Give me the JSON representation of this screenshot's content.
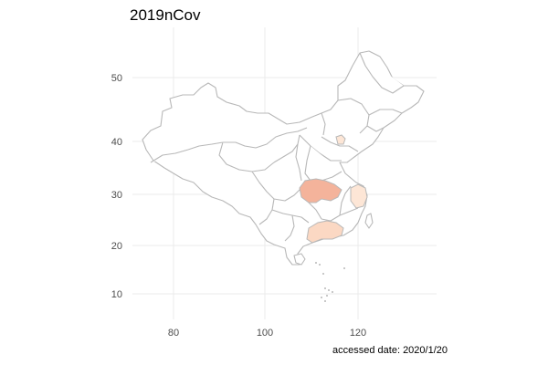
{
  "title": "2019nCov",
  "caption": "accessed date: 2020/1/20",
  "axes": {
    "x_ticks": [
      "80",
      "100",
      "120"
    ],
    "y_ticks": [
      "10",
      "20",
      "30",
      "40",
      "50"
    ]
  },
  "map": {
    "region": "China",
    "grid": true,
    "x_range": [
      73,
      137
    ],
    "y_range": [
      5,
      56
    ],
    "colors": {
      "border": "#b8b8b8",
      "background": "#ffffff",
      "gridline": "#ebebeb",
      "high": "#f4b39b",
      "medium": "#fbd8c3",
      "low": "#fde6d6"
    },
    "highlighted_regions": [
      {
        "region": "Hubei",
        "level": "high"
      },
      {
        "region": "Guangdong",
        "level": "medium"
      },
      {
        "region": "Zhejiang",
        "level": "low"
      },
      {
        "region": "Beijing",
        "level": "low"
      }
    ]
  }
}
